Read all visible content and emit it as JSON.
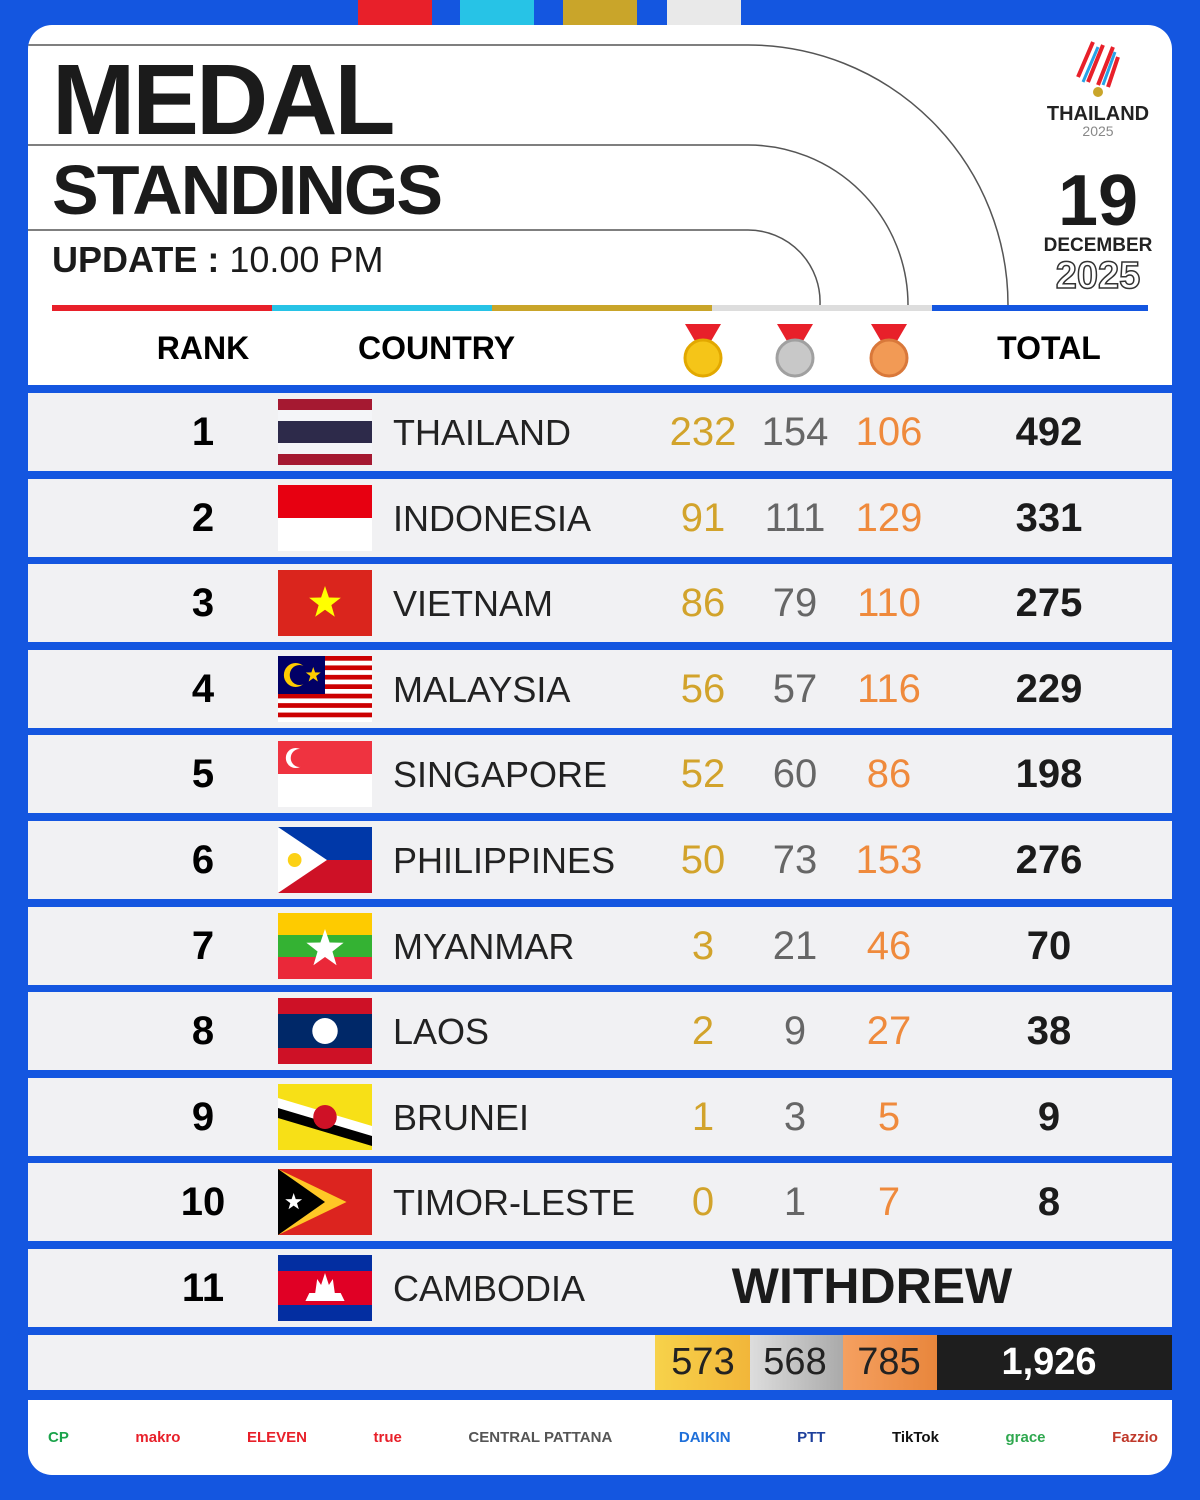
{
  "header": {
    "title": "MEDAL",
    "subtitle": "STANDINGS",
    "update_label": "UPDATE :",
    "update_time": "10.00 PM",
    "event": "THAILAND",
    "event_year": "2025",
    "day": "19",
    "month": "DECEMBER",
    "year": "2025"
  },
  "table": {
    "columns": {
      "rank": "RANK",
      "country": "COUNTRY",
      "total": "TOTAL"
    },
    "rows": [
      {
        "rank": "1",
        "country": "THAILAND",
        "gold": "232",
        "silver": "154",
        "bronze": "106",
        "total": "492"
      },
      {
        "rank": "2",
        "country": "INDONESIA",
        "gold": "91",
        "silver": "111",
        "bronze": "129",
        "total": "331"
      },
      {
        "rank": "3",
        "country": "VIETNAM",
        "gold": "86",
        "silver": "79",
        "bronze": "110",
        "total": "275"
      },
      {
        "rank": "4",
        "country": "MALAYSIA",
        "gold": "56",
        "silver": "57",
        "bronze": "116",
        "total": "229"
      },
      {
        "rank": "5",
        "country": "SINGAPORE",
        "gold": "52",
        "silver": "60",
        "bronze": "86",
        "total": "198"
      },
      {
        "rank": "6",
        "country": "PHILIPPINES",
        "gold": "50",
        "silver": "73",
        "bronze": "153",
        "total": "276"
      },
      {
        "rank": "7",
        "country": "MYANMAR",
        "gold": "3",
        "silver": "21",
        "bronze": "46",
        "total": "70"
      },
      {
        "rank": "8",
        "country": "LAOS",
        "gold": "2",
        "silver": "9",
        "bronze": "27",
        "total": "38"
      },
      {
        "rank": "9",
        "country": "BRUNEI",
        "gold": "1",
        "silver": "3",
        "bronze": "5",
        "total": "9"
      },
      {
        "rank": "10",
        "country": "TIMOR-LESTE",
        "gold": "0",
        "silver": "1",
        "bronze": "7",
        "total": "8"
      },
      {
        "rank": "11",
        "country": "CAMBODIA",
        "status": "WITHDREW"
      }
    ],
    "totals": {
      "gold": "573",
      "silver": "568",
      "bronze": "785",
      "total": "1,926"
    }
  },
  "sponsors": [
    "CP",
    "makro",
    "ELEVEN",
    "true",
    "CENTRAL PATTANA",
    "DAIKIN",
    "PTT",
    "TikTok",
    "grace",
    "Fazzio"
  ]
}
